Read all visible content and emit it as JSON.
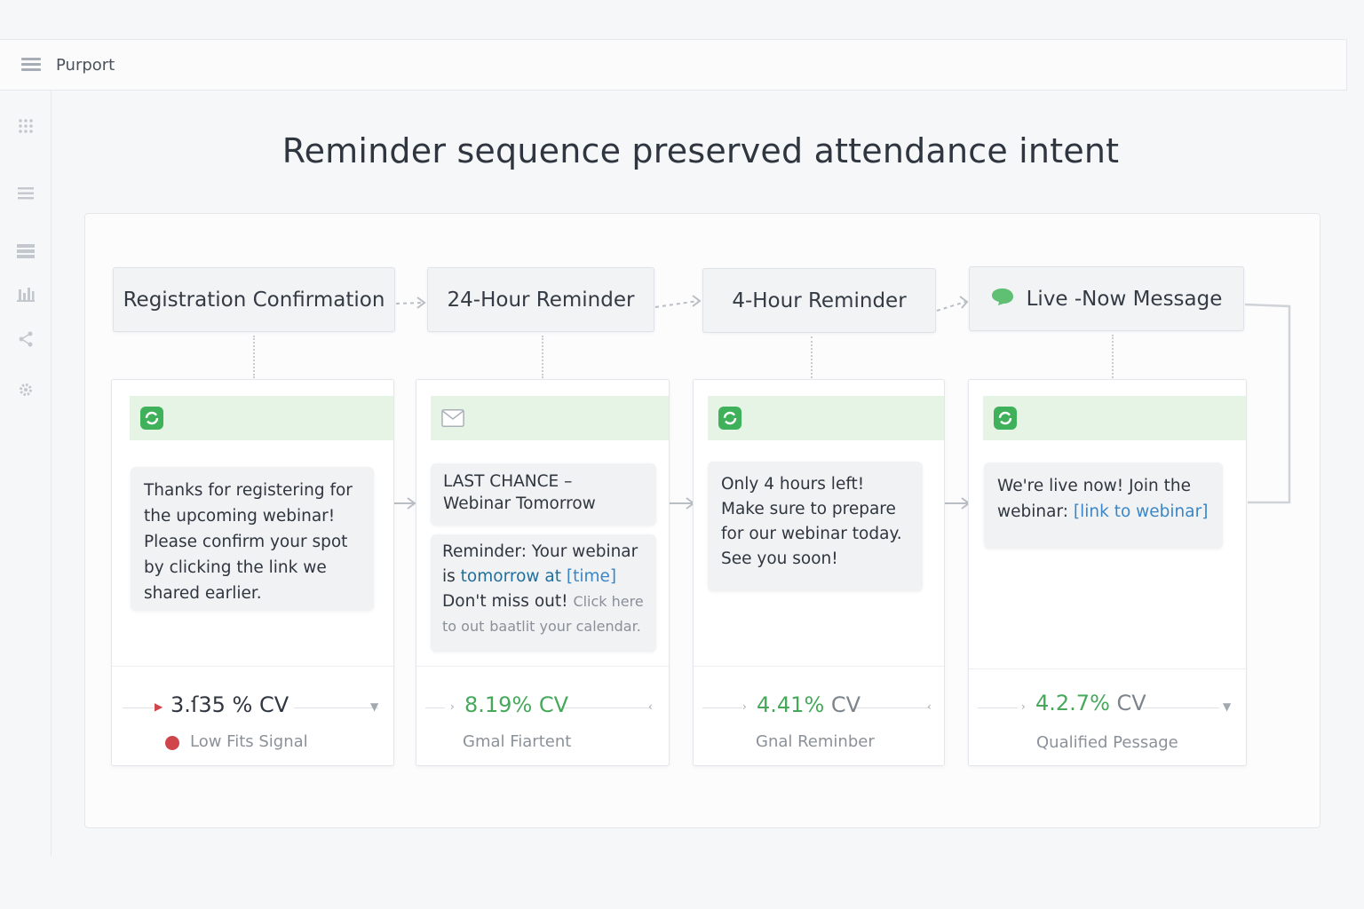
{
  "app": {
    "name": "Purport"
  },
  "page": {
    "title": "Reminder sequence preserved attendance intent"
  },
  "sidebar": {
    "items": [
      {
        "icon": "grid-icon"
      },
      {
        "icon": "list-icon"
      },
      {
        "icon": "rows-icon"
      },
      {
        "icon": "bar-chart-icon"
      },
      {
        "icon": "share-icon"
      },
      {
        "icon": "gear-icon"
      }
    ]
  },
  "steps": [
    {
      "label": "Registration Confirmation"
    },
    {
      "label": "24-Hour Reminder"
    },
    {
      "label": "4-Hour Reminder"
    },
    {
      "label": "Live -Now Message",
      "icon": "chat-bubble-icon"
    }
  ],
  "cards": [
    {
      "channel": "sms",
      "message": "Thanks for registering for the upcoming webinar! Please confirm your spot by clicking the link we shared earlier.",
      "metric": {
        "value": "3.ſ35",
        "unit": "% CV"
      },
      "signal": "Low Fits Signal",
      "signal_color": "#d0454c"
    },
    {
      "channel": "email",
      "subject": "LAST CHANCE – Webinar Tomorrow",
      "message_a": "Reminder: Your webinar is",
      "message_b": "tomorrow at",
      "message_c": "[time]",
      "message_d": "Don't miss out!",
      "message_e": "Click here to out",
      "message_f": "baatlit your calendar.",
      "metric": {
        "value": "8.19%",
        "unit": "CV"
      },
      "signal": "Gmal Fiartent"
    },
    {
      "channel": "sms",
      "message": "Only 4 hours left! Make sure to prepare for our webinar today. See you soon!",
      "metric": {
        "value": "4.41%",
        "unit": "CV"
      },
      "signal": "Gnal Reminber"
    },
    {
      "channel": "sms",
      "message_a": "We're live now! Join the webinar:",
      "message_link": "[link to webinar]",
      "metric": {
        "value": "4.2.7%",
        "unit": "CV"
      },
      "signal": "Qualified Pessage"
    }
  ],
  "colors": {
    "accent_green": "#46a85b",
    "header_green": "#e6f4e6",
    "link_blue": "#3b86c6",
    "alert_red": "#d0454c"
  }
}
